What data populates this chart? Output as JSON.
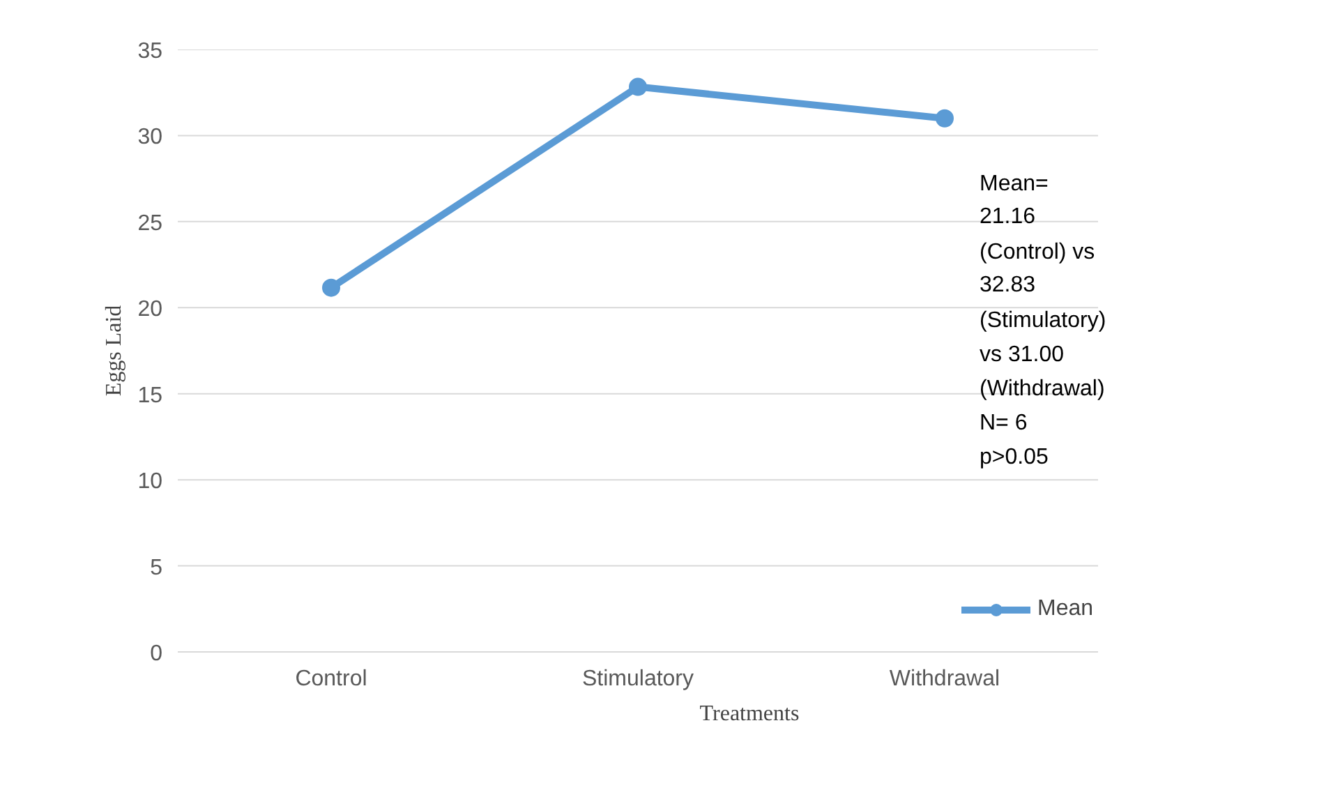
{
  "chart_data": {
    "type": "line",
    "xlabel": "Treatments",
    "ylabel": "Eggs Laid",
    "categories": [
      "Control",
      "Stimulatory",
      "Withdrawal"
    ],
    "series": [
      {
        "name": "Mean",
        "color": "#5b9bd5",
        "values": [
          21.16,
          32.83,
          31.0
        ]
      }
    ],
    "ylim": [
      0,
      35
    ],
    "yticks": [
      0,
      5,
      10,
      15,
      20,
      25,
      30,
      35
    ],
    "grid": "y",
    "legend": "right",
    "marker": "circle",
    "line_style": "solid",
    "annotations": [
      "Mean=\n21.16\n(Control) vs\n32.83\n(Stimulatory)\nvs 31.00\n(Withdrawal)",
      "N= 6",
      "p>0.05"
    ]
  }
}
